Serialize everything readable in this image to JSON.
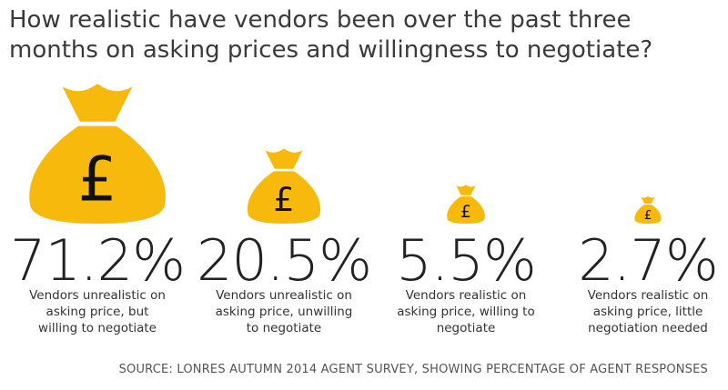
{
  "chart_data": {
    "type": "pictogram",
    "title": "How realistic have vendors been over the past three months on asking prices and willingness to negotiate?",
    "categories": [
      "Vendors unrealistic on asking price, but willing to negotiate",
      "Vendors unrealistic on asking price, unwilling to negotiate",
      "Vendors realistic on asking price, willing to negotiate",
      "Vendors realistic on asking price, little negotiation needed"
    ],
    "values": [
      71.2,
      20.5,
      5.5,
      2.7
    ],
    "value_labels": [
      "71.2%",
      "20.5%",
      "5.5%",
      "2.7%"
    ],
    "icon_symbol": "£",
    "color": "#f6b90c",
    "source": "SOURCE: LONRES AUTUMN 2014 AGENT SURVEY, SHOWING PERCENTAGE OF AGENT RESPONSES"
  }
}
